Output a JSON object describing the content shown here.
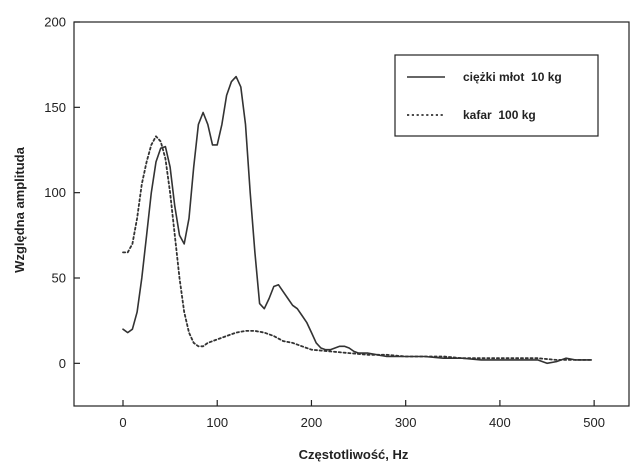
{
  "chart_data": {
    "type": "line",
    "xlabel": "Częstotliwość, Hz",
    "ylabel": "Względna amplituda",
    "xlim": [
      -52,
      537
    ],
    "ylim": [
      -25,
      200
    ],
    "xticks": [
      0,
      100,
      200,
      300,
      400,
      500
    ],
    "yticks": [
      0,
      50,
      100,
      150,
      200
    ],
    "grid": false,
    "legend": "top-right",
    "series": [
      {
        "name": "ciężki młot  10 kg",
        "style": "solid",
        "color": "#333333",
        "x": [
          0,
          5,
          10,
          15,
          20,
          25,
          30,
          35,
          40,
          45,
          50,
          55,
          60,
          65,
          70,
          75,
          80,
          85,
          90,
          95,
          100,
          105,
          110,
          115,
          120,
          125,
          130,
          135,
          140,
          145,
          150,
          155,
          160,
          165,
          170,
          175,
          180,
          185,
          190,
          195,
          200,
          205,
          210,
          215,
          220,
          225,
          230,
          235,
          240,
          245,
          250,
          255,
          260,
          270,
          280,
          290,
          300,
          320,
          340,
          360,
          380,
          400,
          420,
          440,
          450,
          460,
          470,
          480,
          490,
          497
        ],
        "y": [
          20,
          18,
          20,
          30,
          50,
          75,
          100,
          118,
          126,
          127,
          115,
          92,
          75,
          70,
          85,
          115,
          140,
          147,
          140,
          128,
          128,
          140,
          157,
          165,
          168,
          162,
          140,
          100,
          65,
          35,
          32,
          38,
          45,
          46,
          42,
          38,
          34,
          32,
          28,
          24,
          18,
          12,
          9,
          8,
          8,
          9,
          10,
          10,
          9,
          7,
          6,
          6,
          6,
          5,
          4,
          4,
          4,
          4,
          3,
          3,
          2,
          2,
          2,
          2,
          0,
          1,
          3,
          2,
          2,
          2
        ]
      },
      {
        "name": "kafar  100 kg",
        "style": "dotted",
        "color": "#333333",
        "x": [
          0,
          5,
          10,
          15,
          20,
          25,
          30,
          35,
          40,
          45,
          50,
          55,
          60,
          65,
          70,
          75,
          80,
          85,
          90,
          100,
          110,
          120,
          130,
          140,
          150,
          160,
          170,
          180,
          190,
          200,
          220,
          240,
          260,
          280,
          300,
          320,
          340,
          360,
          380,
          400,
          420,
          440,
          460,
          480,
          497
        ],
        "y": [
          65,
          65,
          70,
          85,
          105,
          118,
          128,
          133,
          130,
          120,
          100,
          75,
          50,
          30,
          18,
          12,
          10,
          10,
          12,
          14,
          16,
          18,
          19,
          19,
          18,
          16,
          13,
          12,
          10,
          8,
          7,
          6,
          5,
          5,
          4,
          4,
          4,
          3,
          3,
          3,
          3,
          3,
          2,
          2,
          2
        ]
      }
    ]
  }
}
